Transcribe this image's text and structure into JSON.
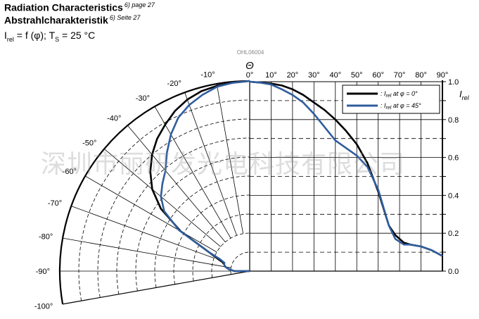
{
  "header": {
    "title_en": "Radiation Characteristics",
    "title_en_note": "6) page 27",
    "title_de": "Abstrahlcharakteristik",
    "title_de_note": "6) Seite 27",
    "formula_I": "I",
    "formula_rel": "rel",
    "formula_mid": " = f (φ); T",
    "formula_S": "S",
    "formula_tail": " = 25 °C"
  },
  "figure_code": "OHL06004",
  "watermark": "深圳市丽研发光电科技有限公司",
  "colors": {
    "black_series": "#000000",
    "blue_series": "#2f5d9e",
    "grid": "#000000"
  },
  "chart_data": {
    "type": "line",
    "subtype": "polar-and-linear radiation diagram",
    "x_axis_label": "Θ",
    "y_axis_label_main": "I",
    "y_axis_label_sub": "rel",
    "x_ticks": [
      "0°",
      "10°",
      "20°",
      "30°",
      "40°",
      "50°",
      "60°",
      "70°",
      "80°",
      "90°"
    ],
    "angle_ticks_left": [
      "-10°",
      "-20°",
      "-30°",
      "-40°",
      "-50°",
      "-60°",
      "-70°",
      "-80°",
      "-90°",
      "-100°"
    ],
    "y_ticks": [
      "0.0",
      "0.2",
      "0.4",
      "0.6",
      "0.8",
      "1.0"
    ],
    "xlim": [
      0,
      90
    ],
    "ylim": [
      0,
      1
    ],
    "legend_position": "top-right",
    "series": [
      {
        "name_I": "I",
        "name_rel": "rel",
        "name_at": "at",
        "name_phi": "φ = 0°",
        "color": "#000000",
        "points": [
          [
            0,
            1.0
          ],
          [
            5,
            0.995
          ],
          [
            10,
            0.99
          ],
          [
            15,
            0.98
          ],
          [
            20,
            0.96
          ],
          [
            25,
            0.93
          ],
          [
            30,
            0.89
          ],
          [
            35,
            0.85
          ],
          [
            40,
            0.8
          ],
          [
            45,
            0.74
          ],
          [
            50,
            0.67
          ],
          [
            55,
            0.57
          ],
          [
            60,
            0.42
          ],
          [
            65,
            0.24
          ],
          [
            68,
            0.19
          ],
          [
            72,
            0.15
          ],
          [
            75,
            0.14
          ],
          [
            80,
            0.13
          ],
          [
            85,
            0.11
          ],
          [
            90,
            0.08
          ]
        ]
      },
      {
        "name_I": "I",
        "name_rel": "rel",
        "name_at": "at",
        "name_phi": "φ = 45°",
        "color": "#2f5d9e",
        "points": [
          [
            0,
            1.0
          ],
          [
            5,
            0.995
          ],
          [
            10,
            0.985
          ],
          [
            15,
            0.96
          ],
          [
            20,
            0.93
          ],
          [
            25,
            0.89
          ],
          [
            30,
            0.83
          ],
          [
            35,
            0.76
          ],
          [
            40,
            0.69
          ],
          [
            45,
            0.65
          ],
          [
            50,
            0.61
          ],
          [
            55,
            0.55
          ],
          [
            60,
            0.43
          ],
          [
            65,
            0.24
          ],
          [
            68,
            0.17
          ],
          [
            72,
            0.14
          ],
          [
            75,
            0.14
          ],
          [
            80,
            0.13
          ],
          [
            85,
            0.11
          ],
          [
            90,
            0.08
          ]
        ]
      }
    ]
  }
}
